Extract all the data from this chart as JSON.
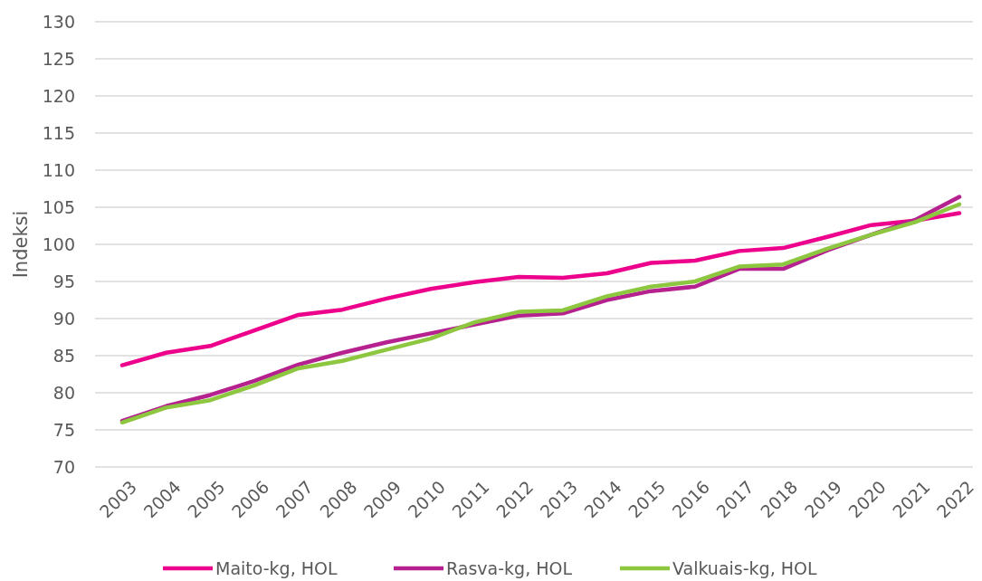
{
  "chart_data": {
    "type": "line",
    "ylabel": "Indeksi",
    "categories": [
      "2003",
      "2004",
      "2005",
      "2006",
      "2007",
      "2008",
      "2009",
      "2010",
      "2011",
      "2012",
      "2013",
      "2014",
      "2015",
      "2016",
      "2017",
      "2018",
      "2019",
      "2020",
      "2021",
      "2022"
    ],
    "series": [
      {
        "name": "Maito-kg, HOL",
        "color": "#ec008c",
        "values": [
          83.7,
          85.4,
          86.3,
          88.4,
          90.5,
          91.2,
          92.7,
          94.0,
          94.9,
          95.6,
          95.5,
          96.1,
          97.5,
          97.8,
          99.1,
          99.5,
          101.0,
          102.6,
          103.2,
          104.2
        ]
      },
      {
        "name": "Rasva-kg, HOL",
        "color": "#b5218e",
        "values": [
          76.2,
          78.2,
          79.7,
          81.6,
          83.8,
          85.4,
          86.8,
          88.0,
          89.2,
          90.4,
          90.7,
          92.5,
          93.7,
          94.3,
          96.7,
          96.7,
          99.2,
          101.3,
          103.3,
          106.4
        ]
      },
      {
        "name": "Valkuais-kg, HOL",
        "color": "#8dc63f",
        "values": [
          76.0,
          78.0,
          79.0,
          81.0,
          83.3,
          84.3,
          85.8,
          87.3,
          89.5,
          90.9,
          91.1,
          93.0,
          94.3,
          95.0,
          97.0,
          97.3,
          99.4,
          101.3,
          103.0,
          105.4
        ]
      }
    ],
    "ylim": [
      70,
      130
    ],
    "yticks": [
      70,
      75,
      80,
      85,
      90,
      95,
      100,
      105,
      110,
      115,
      120,
      125,
      130
    ],
    "grid": "y",
    "legend": "bottom",
    "marker": "none",
    "line_style": "solid"
  }
}
